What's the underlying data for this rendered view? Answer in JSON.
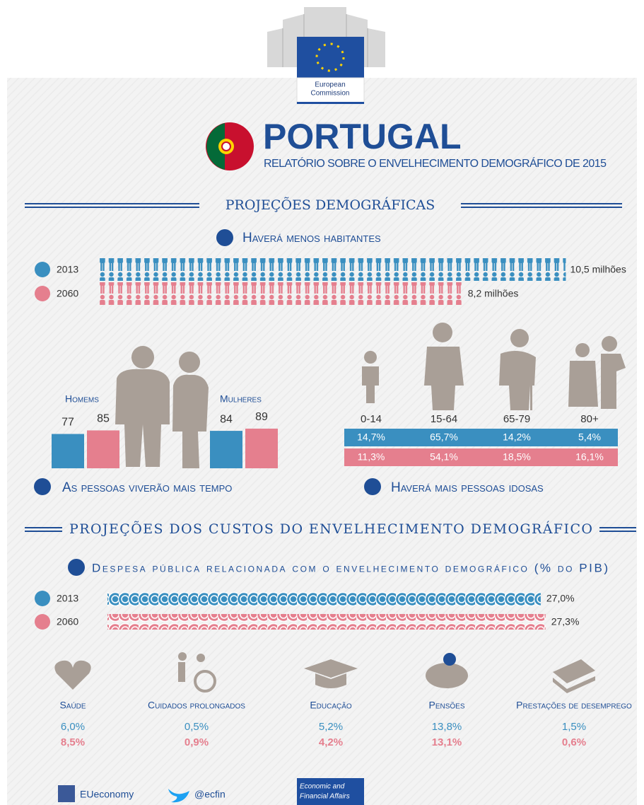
{
  "header": {
    "logo_lines": [
      "European",
      "Commission"
    ],
    "country": "PORTUGAL",
    "subtitle": "RELATÓRIO SOBRE O ENVELHECIMENTO DEMOGRÁFICO DE 2015"
  },
  "demographics": {
    "title": "PROJEÇÕES DEMOGRÁFICAS",
    "population": {
      "heading": "Haverá menos habitantes",
      "rows": [
        {
          "year": "2013",
          "value": 10.5,
          "label": "10,5 milhões"
        },
        {
          "year": "2060",
          "value": 8.2,
          "label": "8,2 milhões"
        }
      ]
    },
    "life_expectancy": {
      "heading": "As pessoas viverão mais tempo",
      "groups": [
        {
          "label": "Homems",
          "values": [
            77,
            85
          ]
        },
        {
          "label": "Mulheres",
          "values": [
            84,
            89
          ]
        }
      ]
    },
    "age_structure": {
      "heading": "Haverá mais pessoas idosas",
      "categories": [
        "0-14",
        "15-64",
        "65-79",
        "80+"
      ],
      "rows": [
        [
          "14,7%",
          "65,7%",
          "14,2%",
          "5,4%"
        ],
        [
          "11,3%",
          "54,1%",
          "18,5%",
          "16,1%"
        ]
      ]
    }
  },
  "costs": {
    "title": "PROJEÇÕES DOS CUSTOS DO ENVELHECIMENTO DEMOGRÁFICO",
    "spending": {
      "heading": "Despesa pública relacionada com o envelhecimento demográfico (% do PIB)",
      "rows": [
        {
          "year": "2013",
          "value": 27.0,
          "label": "27,0%"
        },
        {
          "year": "2060",
          "value": 27.3,
          "label": "27,3%"
        }
      ]
    },
    "items": [
      {
        "name": "Saúde",
        "values": [
          "6,0%",
          "8,5%"
        ]
      },
      {
        "name": "Cuidados prolongados",
        "values": [
          "0,5%",
          "0,9%"
        ]
      },
      {
        "name": "Educação",
        "values": [
          "5,2%",
          "4,2%"
        ]
      },
      {
        "name": "Pensões",
        "values": [
          "13,8%",
          "13,1%"
        ]
      },
      {
        "name": "Prestações de desemprego",
        "values": [
          "1,5%",
          "0,6%"
        ]
      }
    ]
  },
  "footer": {
    "facebook": "EUeconomy",
    "twitter": "@ecfin",
    "dg_lines": [
      "Economic and",
      "Financial Affairs"
    ]
  }
}
